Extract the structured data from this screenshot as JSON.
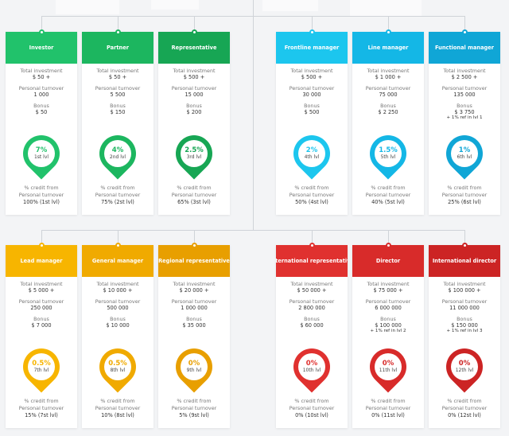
{
  "labels": {
    "total_investment": "Total investment",
    "personal_turnover": "Personal turnover",
    "bonus": "Bonus",
    "credit_from": "% credit from",
    "personal_turnover_short": "Personal turnover"
  },
  "cards": [
    {
      "title": "Investor",
      "color": "#21c26b",
      "investment": "$ 50 +",
      "turnover": "1 000",
      "bonus": "$ 50",
      "extra": "",
      "pct": "7%",
      "lvl": "1st lvl",
      "credit": "100% (1st lvl)"
    },
    {
      "title": "Partner",
      "color": "#1cb65f",
      "investment": "$ 50 +",
      "turnover": "5 500",
      "bonus": "$ 150",
      "extra": "",
      "pct": "4%",
      "lvl": "2nd lvl",
      "credit": "75% (2st lvl)"
    },
    {
      "title": "Representative",
      "color": "#17a654",
      "investment": "$ 500 +",
      "turnover": "15 000",
      "bonus": "$ 200",
      "extra": "",
      "pct": "2.5%",
      "lvl": "3rd lvl",
      "credit": "65% (3st lvl)"
    },
    {
      "title": "Frontline manager",
      "color": "#1cc6ee",
      "investment": "$ 500 +",
      "turnover": "30 000",
      "bonus": "$ 500",
      "extra": "",
      "pct": "2%",
      "lvl": "4th lvl",
      "credit": "50% (4st lvl)"
    },
    {
      "title": "Line manager",
      "color": "#14b7e6",
      "investment": "$ 1 000 +",
      "turnover": "75 000",
      "bonus": "$ 2 250",
      "extra": "",
      "pct": "1.5%",
      "lvl": "5th lvl",
      "credit": "40% (5st lvl)"
    },
    {
      "title": "Functional manager",
      "color": "#10a6d6",
      "investment": "$ 2 500 +",
      "turnover": "135 000",
      "bonus": "$ 3 750",
      "extra": "+ 1% ref in lvl 1",
      "pct": "1%",
      "lvl": "6th lvl",
      "credit": "25% (6st lvl)"
    },
    {
      "title": "Lead manager",
      "color": "#f7b500",
      "investment": "$ 5 000 +",
      "turnover": "250 000",
      "bonus": "$ 7 000",
      "extra": "",
      "pct": "0.5%",
      "lvl": "7th lvl",
      "credit": "15% (7st lvl)"
    },
    {
      "title": "General manager",
      "color": "#f0aa00",
      "investment": "$ 10 000 +",
      "turnover": "500 000",
      "bonus": "$ 10 000",
      "extra": "",
      "pct": "0.5%",
      "lvl": "8th lvl",
      "credit": "10% (8st lvl)"
    },
    {
      "title": "Regional representative",
      "color": "#e89f00",
      "investment": "$ 20 000 +",
      "turnover": "1 000 000",
      "bonus": "$ 35 000",
      "extra": "",
      "pct": "0%",
      "lvl": "9th lvl",
      "credit": "5% (9st lvl)"
    },
    {
      "title": "International representative",
      "color": "#e0312f",
      "investment": "$ 50 000 +",
      "turnover": "2 800 000",
      "bonus": "$ 60 000",
      "extra": "",
      "pct": "0%",
      "lvl": "10th lvl",
      "credit": "0% (10st lvl)"
    },
    {
      "title": "Director",
      "color": "#d82b2a",
      "investment": "$ 75 000 +",
      "turnover": "6 000 000",
      "bonus": "$ 100 000",
      "extra": "+ 1% ref in lvl 2",
      "pct": "0%",
      "lvl": "11th lvl",
      "credit": "0% (11st lvl)"
    },
    {
      "title": "International director",
      "color": "#cc2424",
      "investment": "$ 100 000 +",
      "turnover": "11 000 000",
      "bonus": "$ 150 000",
      "extra": "+ 1% ref in lvl 3",
      "pct": "0%",
      "lvl": "12th lvl",
      "credit": "0% (12st lvl)"
    }
  ]
}
